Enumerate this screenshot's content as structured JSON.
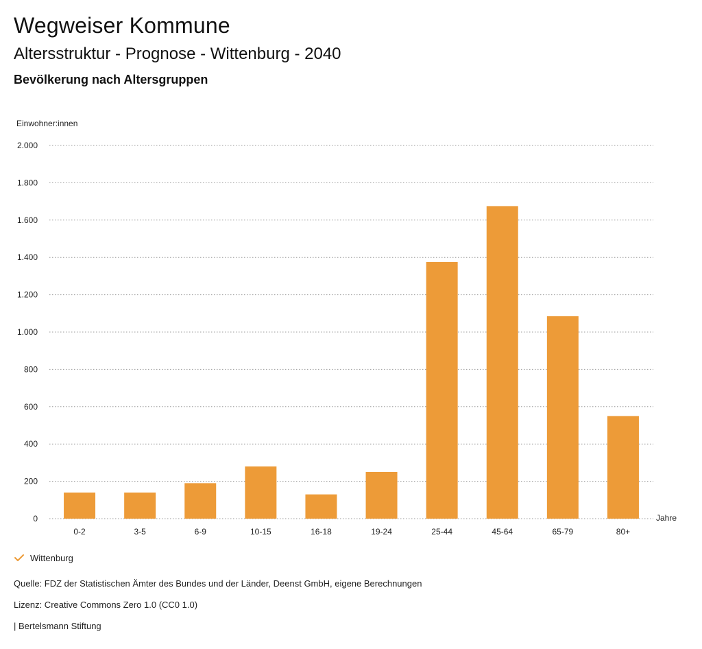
{
  "header": {
    "title": "Wegweiser Kommune",
    "subtitle": "Altersstruktur - Prognose - Wittenburg - 2040",
    "section_title": "Bevölkerung nach Altersgruppen"
  },
  "legend": {
    "label": "Wittenburg",
    "icon": "check-icon"
  },
  "footer": {
    "source": "Quelle: FDZ der Statistischen Ämter des Bundes und der Länder, Deenst GmbH, eigene Berechnungen",
    "license": "Lizenz: Creative Commons Zero 1.0 (CC0 1.0)",
    "publisher": "| Bertelsmann Stiftung"
  },
  "colors": {
    "bar": "#ED9B38",
    "grid": "#9A9A9A",
    "check": "#ED9B38"
  },
  "chart_data": {
    "type": "bar",
    "title": "Bevölkerung nach Altersgruppen",
    "xlabel": "Jahre",
    "ylabel": "Einwohner:innen",
    "categories": [
      "0-2",
      "3-5",
      "6-9",
      "10-15",
      "16-18",
      "19-24",
      "25-44",
      "45-64",
      "65-79",
      "80+"
    ],
    "series": [
      {
        "name": "Wittenburg",
        "values": [
          140,
          140,
          190,
          280,
          130,
          250,
          1375,
          1675,
          1085,
          550
        ]
      }
    ],
    "ylim": [
      0,
      2000
    ],
    "yticks": [
      0,
      200,
      400,
      600,
      800,
      1000,
      1200,
      1400,
      1600,
      1800,
      2000
    ],
    "ytick_labels": [
      "0",
      "200",
      "400",
      "600",
      "800",
      "1.000",
      "1.200",
      "1.400",
      "1.600",
      "1.800",
      "2.000"
    ],
    "grid": true,
    "legend_position": "bottom-left"
  }
}
